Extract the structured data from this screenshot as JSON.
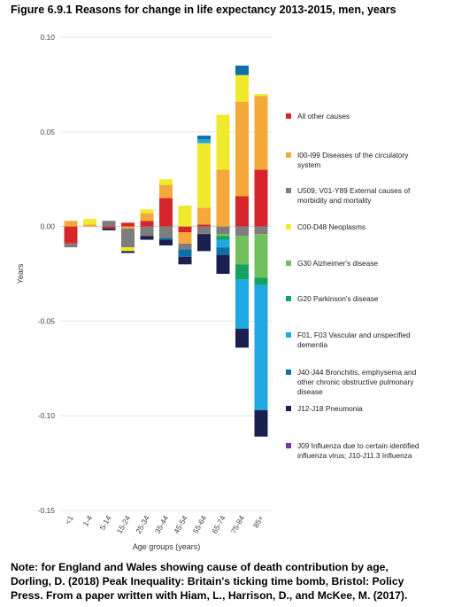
{
  "figure": {
    "title": "Figure 6.9.1 Reasons for change in life expectancy 2013-2015, men, years",
    "note_lines": [
      "Note: for England and Wales showing cause of death contribution by age,",
      "Dorling, D. (2018) Peak Inequality: Britain's ticking time bomb, Bristol: Policy",
      "Press. From a paper written with Hiam, L., Harrison, D., and McKee, M. (2017)."
    ]
  },
  "chart_data": {
    "type": "bar",
    "stacked": true,
    "xlabel": "Age groups (years)",
    "ylabel": "Years",
    "ylim": [
      -0.15,
      0.1
    ],
    "yticks": [
      0.1,
      0.05,
      0.0,
      -0.05,
      -0.1,
      -0.15
    ],
    "ytick_labels": [
      "0.10",
      "0.05",
      "0.00",
      "-0.05",
      "-0.10",
      "-0.15"
    ],
    "grid": true,
    "legend_position": "right",
    "categories": [
      "<1",
      "1-4",
      "5-14",
      "15-24",
      "25-34",
      "35-44",
      "45-54",
      "55-64",
      "65-74",
      "75-84",
      "85+"
    ],
    "series": [
      {
        "name": "All other causes",
        "color": "#d7262b",
        "values": [
          -0.009,
          0.0,
          -0.001,
          0.002,
          0.003,
          0.015,
          -0.003,
          0.001,
          0.0,
          0.016,
          0.03
        ]
      },
      {
        "name": "I00-I99 Diseases of the circulatory system",
        "color": "#f4a93a",
        "values": [
          0.003,
          0.001,
          0.0,
          -0.001,
          0.004,
          0.007,
          -0.006,
          0.009,
          0.03,
          0.05,
          0.039
        ]
      },
      {
        "name": "U509, V01-Y89 External causes of morbidity and mortality",
        "color": "#7d7d7d",
        "values": [
          -0.002,
          0.0,
          0.003,
          -0.01,
          -0.005,
          -0.006,
          -0.003,
          -0.004,
          -0.004,
          -0.005,
          -0.004
        ]
      },
      {
        "name": "C00-D48 Neoplasms",
        "color": "#f0ea2c",
        "values": [
          0.0,
          0.003,
          0.0,
          -0.002,
          0.002,
          0.003,
          0.011,
          0.034,
          0.029,
          0.014,
          0.001
        ]
      },
      {
        "name": "G30 Alzheimer's disease",
        "color": "#72c05b",
        "values": [
          0.0,
          0.0,
          0.0,
          0.0,
          0.0,
          0.0,
          0.0,
          0.0,
          -0.001,
          -0.015,
          -0.023
        ]
      },
      {
        "name": "G20 Parkinson's disease",
        "color": "#15a162",
        "values": [
          0.0,
          0.0,
          0.0,
          0.0,
          0.0,
          0.0,
          0.0,
          0.0,
          -0.002,
          -0.008,
          -0.004
        ]
      },
      {
        "name": "F01, F03 Vascular and unspecified dementia",
        "color": "#1fa8e1",
        "values": [
          0.0,
          0.0,
          0.0,
          0.0,
          0.0,
          0.0,
          0.0,
          0.002,
          -0.004,
          -0.026,
          -0.066
        ]
      },
      {
        "name": "J40-J44 Bronchitis, emphysema and other chronic obstructive pulmonary disease",
        "color": "#0f6fa8",
        "values": [
          0.0,
          0.0,
          0.0,
          0.0,
          0.0,
          -0.001,
          -0.004,
          0.002,
          -0.004,
          0.005,
          0.0
        ]
      },
      {
        "name": "J12-J18 Pneumonia",
        "color": "#1a1f4f",
        "values": [
          0.0,
          0.0,
          -0.001,
          -0.001,
          -0.002,
          -0.003,
          -0.004,
          -0.009,
          -0.01,
          -0.01,
          -0.014
        ]
      },
      {
        "name": "J09 Influenza due to certain identified influenza virus; J10-J11.3 Influenza",
        "color": "#6f3aa8",
        "values": [
          0.0,
          0.0,
          0.0,
          0.0,
          0.0,
          0.0,
          0.0,
          0.0,
          0.0,
          0.0,
          0.0
        ]
      }
    ],
    "legend": [
      {
        "lines": [
          "All other causes"
        ],
        "color": "#d7262b"
      },
      {
        "lines": [
          "I00-I99 Diseases of the circulatory",
          "system"
        ],
        "color": "#f4a93a"
      },
      {
        "lines": [
          "U509, V01-Y89 External causes of",
          "morbidity  and mortality"
        ],
        "color": "#7d7d7d"
      },
      {
        "lines": [
          "C00-D48 Neoplasms"
        ],
        "color": "#f0ea2c"
      },
      {
        "lines": [
          "G30 Alzheimer's disease"
        ],
        "color": "#72c05b"
      },
      {
        "lines": [
          "G20 Parkinson's disease"
        ],
        "color": "#15a162"
      },
      {
        "lines": [
          "F01, F03 Vascular and unspecified",
          "dementia"
        ],
        "color": "#1fa8e1"
      },
      {
        "lines": [
          "J40-J44 Bronchitis, emphysema and",
          "other chronic obstructive pulmonary",
          "disease"
        ],
        "color": "#0f6fa8"
      },
      {
        "lines": [
          "J12-J18 Pneumonia"
        ],
        "color": "#1a1f4f"
      },
      {
        "lines": [
          "J09 Influenza due to certain identified",
          "influenza virus; J10-J11.3 Influenza"
        ],
        "color": "#6f3aa8"
      }
    ]
  }
}
